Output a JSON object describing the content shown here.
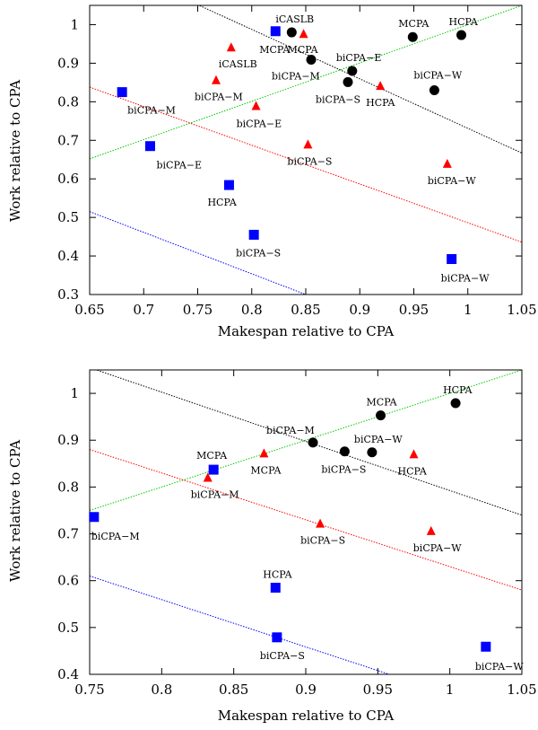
{
  "chart_data": [
    {
      "type": "scatter",
      "xlabel": "Makespan relative to CPA",
      "ylabel": "Work relative to CPA",
      "xlim": [
        0.65,
        1.05
      ],
      "ylim": [
        0.3,
        1.05
      ],
      "xticks": [
        "0.65",
        "0.7",
        "0.75",
        "0.8",
        "0.85",
        "0.9",
        "0.95",
        "1",
        "1.05"
      ],
      "yticks": [
        "0.3",
        "0.4",
        "0.5",
        "0.6",
        "0.7",
        "0.8",
        "0.9",
        "1"
      ],
      "grid": false,
      "series": [
        {
          "marker": "square",
          "color": "#0000ff",
          "points": [
            {
              "x": 0.822,
              "y": 0.983,
              "label": "MCPA"
            },
            {
              "x": 0.68,
              "y": 0.825,
              "label": "biCPA−M"
            },
            {
              "x": 0.706,
              "y": 0.685,
              "label": "biCPA−E"
            },
            {
              "x": 0.779,
              "y": 0.584,
              "label": "HCPA"
            },
            {
              "x": 0.802,
              "y": 0.455,
              "label": "biCPA−S"
            },
            {
              "x": 0.985,
              "y": 0.392,
              "label": "biCPA−W"
            }
          ]
        },
        {
          "marker": "triangle",
          "color": "#ff0000",
          "points": [
            {
              "x": 0.781,
              "y": 0.94,
              "label": "iCASLB"
            },
            {
              "x": 0.848,
              "y": 0.975,
              "label": "MCPA"
            },
            {
              "x": 0.767,
              "y": 0.855,
              "label": "biCPA−M"
            },
            {
              "x": 0.804,
              "y": 0.788,
              "label": "biCPA−E"
            },
            {
              "x": 0.852,
              "y": 0.688,
              "label": "biCPA−S"
            },
            {
              "x": 0.919,
              "y": 0.84,
              "label": "HCPA"
            },
            {
              "x": 0.981,
              "y": 0.638,
              "label": "biCPA−W"
            }
          ]
        },
        {
          "marker": "circle",
          "color": "#000000",
          "points": [
            {
              "x": 0.837,
              "y": 0.98,
              "label": "iCASLB"
            },
            {
              "x": 0.949,
              "y": 0.968,
              "label": "MCPA"
            },
            {
              "x": 0.994,
              "y": 0.973,
              "label": "HCPA"
            },
            {
              "x": 0.855,
              "y": 0.909,
              "label": "biCPA−M"
            },
            {
              "x": 0.893,
              "y": 0.88,
              "label": "biCPA−E"
            },
            {
              "x": 0.889,
              "y": 0.851,
              "label": "biCPA−S"
            },
            {
              "x": 0.969,
              "y": 0.83,
              "label": "biCPA−W"
            }
          ]
        }
      ],
      "lines": [
        {
          "color": "#00cc00",
          "from": [
            0.65,
            0.652
          ],
          "to": [
            1.05,
            1.05
          ]
        },
        {
          "color": "#000000",
          "from": [
            0.65,
            1.18
          ],
          "to": [
            1.05,
            0.667
          ]
        },
        {
          "color": "#ff0000",
          "from": [
            0.65,
            0.838
          ],
          "to": [
            1.05,
            0.436
          ]
        },
        {
          "color": "#0000ff",
          "from": [
            0.65,
            0.515
          ],
          "to": [
            0.85,
            0.3
          ]
        }
      ]
    },
    {
      "type": "scatter",
      "xlabel": "Makespan relative to CPA",
      "ylabel": "Work relative to CPA",
      "xlim": [
        0.75,
        1.05
      ],
      "ylim": [
        0.4,
        1.05
      ],
      "xticks": [
        "0.75",
        "0.8",
        "0.85",
        "0.9",
        "0.95",
        "1",
        "1.05"
      ],
      "yticks": [
        "0.4",
        "0.5",
        "0.6",
        "0.7",
        "0.8",
        "0.9",
        "1"
      ],
      "grid": false,
      "series": [
        {
          "marker": "square",
          "color": "#0000ff",
          "points": [
            {
              "x": 0.836,
              "y": 0.837,
              "label": "MCPA"
            },
            {
              "x": 0.753,
              "y": 0.736,
              "label": "biCPA−M"
            },
            {
              "x": 0.879,
              "y": 0.585,
              "label": "HCPA"
            },
            {
              "x": 0.88,
              "y": 0.479,
              "label": "biCPA−S"
            },
            {
              "x": 1.025,
              "y": 0.459,
              "label": "biCPA−W"
            }
          ]
        },
        {
          "marker": "triangle",
          "color": "#ff0000",
          "points": [
            {
              "x": 0.871,
              "y": 0.871,
              "label": "MCPA"
            },
            {
              "x": 0.832,
              "y": 0.819,
              "label": "biCPA−M"
            },
            {
              "x": 0.91,
              "y": 0.721,
              "label": "biCPA−S"
            },
            {
              "x": 0.975,
              "y": 0.869,
              "label": "HCPA"
            },
            {
              "x": 0.987,
              "y": 0.705,
              "label": "biCPA−W"
            }
          ]
        },
        {
          "marker": "circle",
          "color": "#000000",
          "points": [
            {
              "x": 0.952,
              "y": 0.953,
              "label": "MCPA"
            },
            {
              "x": 1.004,
              "y": 0.979,
              "label": "HCPA"
            },
            {
              "x": 0.905,
              "y": 0.895,
              "label": "biCPA−M"
            },
            {
              "x": 0.927,
              "y": 0.876,
              "label": "biCPA−S"
            },
            {
              "x": 0.946,
              "y": 0.874,
              "label": "biCPA−W"
            }
          ]
        }
      ],
      "lines": [
        {
          "color": "#00cc00",
          "from": [
            0.75,
            0.75
          ],
          "to": [
            1.05,
            1.05
          ]
        },
        {
          "color": "#000000",
          "from": [
            0.75,
            1.055
          ],
          "to": [
            1.05,
            0.74
          ]
        },
        {
          "color": "#ff0000",
          "from": [
            0.75,
            0.88
          ],
          "to": [
            1.05,
            0.58
          ]
        },
        {
          "color": "#0000ff",
          "from": [
            0.75,
            0.61
          ],
          "to": [
            0.958,
            0.4
          ]
        }
      ]
    }
  ]
}
